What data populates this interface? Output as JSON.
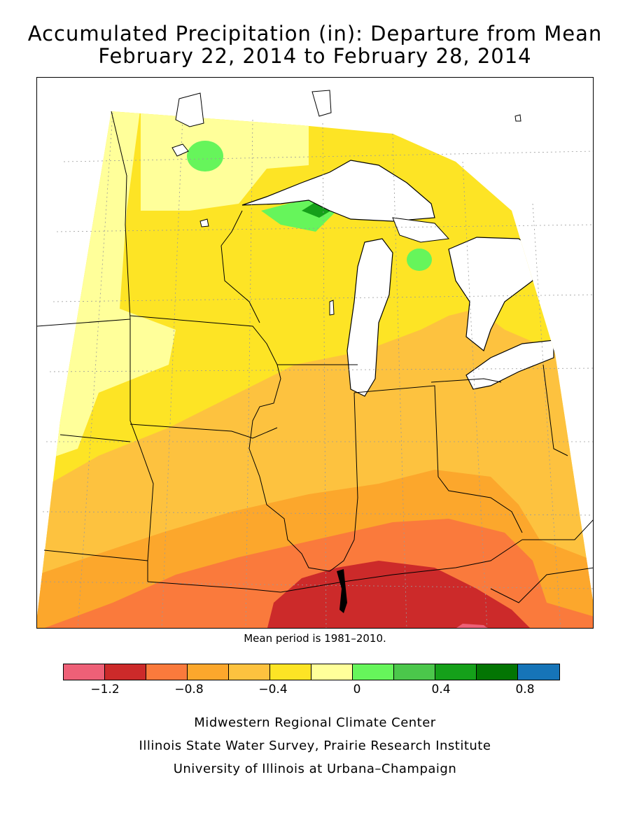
{
  "title": {
    "line1": "Accumulated Precipitation (in): Departure from Mean",
    "line2": "February 22, 2014 to February 28, 2014"
  },
  "map": {
    "note": "Mean period is 1981–2010."
  },
  "legend": {
    "colors": [
      "#ee6077",
      "#cc2a2a",
      "#fa7a3c",
      "#fca72c",
      "#fdc23f",
      "#fde425",
      "#ffff9a",
      "#66f55b",
      "#4bc74b",
      "#15a01a",
      "#037503",
      "#1674b8"
    ],
    "ticks": [
      "−1.2",
      "−0.8",
      "−0.4",
      "0",
      "0.4",
      "0.8"
    ]
  },
  "credits": {
    "line1": "Midwestern Regional Climate Center",
    "line2": "Illinois State Water Survey, Prairie Research Institute",
    "line3": "University of Illinois at Urbana–Champaign"
  }
}
